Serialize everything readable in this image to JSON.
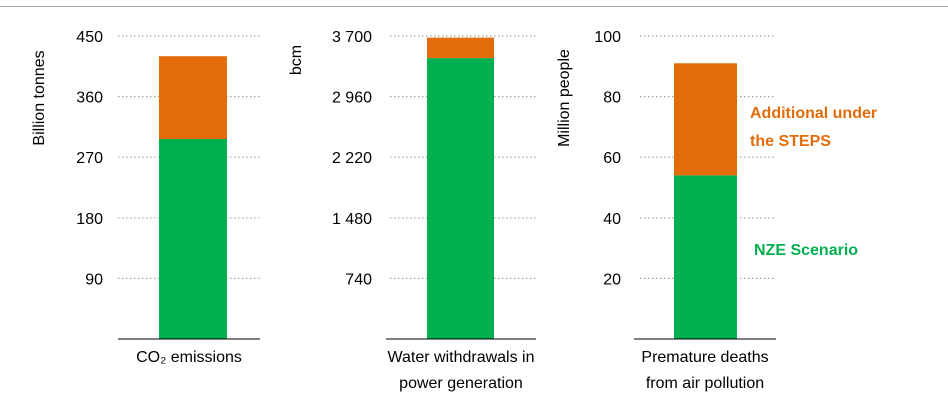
{
  "chart_data": [
    {
      "type": "bar",
      "stacked": true,
      "ylabel": "Billion tonnes",
      "ylim": [
        0,
        450
      ],
      "yticks": [
        "90",
        "180",
        "270",
        "360",
        "450"
      ],
      "categories": [
        "CO₂ emissions"
      ],
      "series": [
        {
          "name": "NZE Scenario",
          "values": [
            297
          ],
          "color": "#00b050"
        },
        {
          "name": "Additional under the STEPS",
          "values": [
            123
          ],
          "color": "#e36c0a"
        }
      ],
      "grid": true
    },
    {
      "type": "bar",
      "stacked": true,
      "ylabel": "bcm",
      "ylim": [
        0,
        3700
      ],
      "yticks": [
        "740",
        "1 480",
        "2 220",
        "2 960",
        "3 700"
      ],
      "categories": [
        "Water withdrawals in power generation"
      ],
      "category_lines": [
        "Water withdrawals in",
        "power generation"
      ],
      "series": [
        {
          "name": "NZE Scenario",
          "values": [
            3430
          ],
          "color": "#00b050"
        },
        {
          "name": "Additional under the STEPS",
          "values": [
            250
          ],
          "color": "#e36c0a"
        }
      ],
      "grid": true
    },
    {
      "type": "bar",
      "stacked": true,
      "ylabel": "Million people",
      "ylim": [
        0,
        100
      ],
      "yticks": [
        "20",
        "40",
        "60",
        "80",
        "100"
      ],
      "categories": [
        "Premature deaths from air pollution"
      ],
      "category_lines": [
        "Premature deaths",
        "from air pollution"
      ],
      "series": [
        {
          "name": "NZE Scenario",
          "values": [
            54
          ],
          "color": "#00b050"
        },
        {
          "name": "Additional under the STEPS",
          "values": [
            37
          ],
          "color": "#e36c0a"
        }
      ],
      "grid": true
    }
  ],
  "legend": {
    "placement": "right",
    "steps_lines": [
      "Additional under",
      "the STEPS"
    ],
    "nze_label": "NZE Scenario",
    "steps_color": "#e36c0a",
    "nze_color": "#00b050"
  }
}
